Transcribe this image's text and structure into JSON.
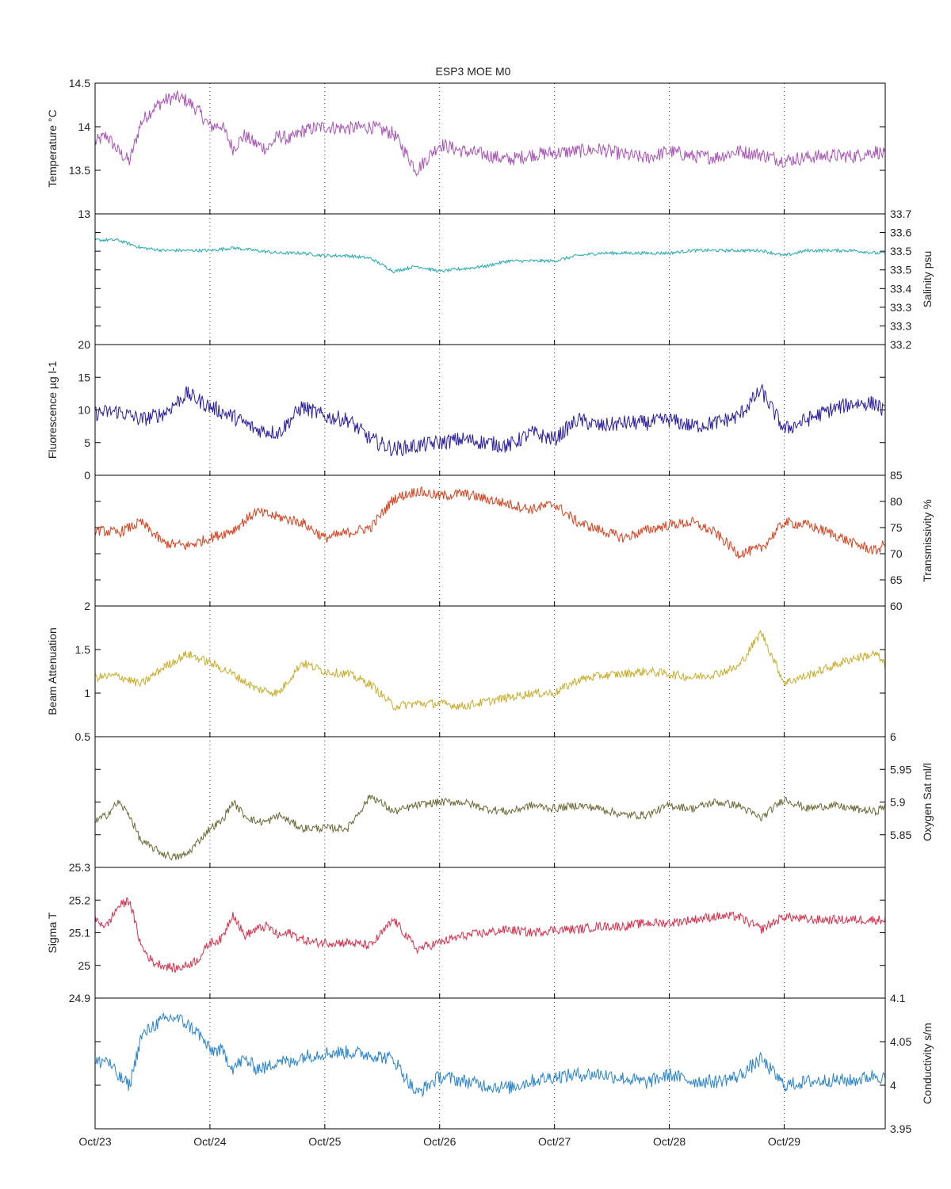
{
  "title": "ESP3 MOE   M0",
  "chart_data": {
    "type": "line",
    "title": "ESP3 MOE   M0",
    "x_ticks": [
      "Oct/23",
      "Oct/24",
      "Oct/25",
      "Oct/26",
      "Oct/27",
      "Oct/28",
      "Oct/29"
    ],
    "xlim": [
      0,
      6.88
    ],
    "grid": "vertical dotted at day boundaries",
    "panels": [
      {
        "name": "temperature",
        "ylabel": "Temperature °C",
        "axis_side": "left",
        "ylim": [
          13,
          14.5
        ],
        "yticks": [
          "13",
          "13.5",
          "14",
          "14.5"
        ],
        "color": "#a855b5",
        "series": {
          "x": [
            0,
            0.1,
            0.2,
            0.3,
            0.4,
            0.5,
            0.6,
            0.7,
            0.8,
            0.9,
            1.0,
            1.1,
            1.2,
            1.3,
            1.4,
            1.5,
            1.6,
            1.7,
            1.8,
            1.9,
            2.0,
            2.2,
            2.4,
            2.6,
            2.8,
            3.0,
            3.2,
            3.4,
            3.6,
            3.8,
            4.0,
            4.2,
            4.4,
            4.6,
            4.8,
            5.0,
            5.2,
            5.4,
            5.6,
            5.8,
            6.0,
            6.2,
            6.4,
            6.6,
            6.8,
            6.88
          ],
          "y": [
            13.82,
            13.9,
            13.72,
            13.6,
            14.05,
            14.2,
            14.3,
            14.34,
            14.3,
            14.18,
            14.0,
            14.02,
            13.75,
            13.9,
            13.8,
            13.75,
            13.9,
            13.85,
            13.95,
            13.98,
            14.0,
            13.98,
            14.0,
            13.92,
            13.5,
            13.8,
            13.72,
            13.68,
            13.62,
            13.68,
            13.7,
            13.72,
            13.74,
            13.68,
            13.64,
            13.72,
            13.66,
            13.65,
            13.72,
            13.68,
            13.61,
            13.65,
            13.67,
            13.66,
            13.72,
            13.67
          ]
        },
        "noise": 0.08
      },
      {
        "name": "salinity",
        "ylabel": "Salinity psu",
        "axis_side": "right",
        "ylim": [
          33.2,
          33.7
        ],
        "yticks": [
          "33.2",
          "33.3",
          "33.3",
          "33.4",
          "33.5",
          "33.5",
          "33.6",
          "33.7"
        ],
        "color": "#22a8b0",
        "series": {
          "x": [
            0,
            0.2,
            0.4,
            0.6,
            0.8,
            1.0,
            1.2,
            1.4,
            1.6,
            1.8,
            2.0,
            2.2,
            2.4,
            2.6,
            2.8,
            3.0,
            3.2,
            3.4,
            3.6,
            3.8,
            4.0,
            4.2,
            4.4,
            4.6,
            4.8,
            5.0,
            5.2,
            5.4,
            5.6,
            5.8,
            6.0,
            6.2,
            6.4,
            6.6,
            6.8,
            6.88
          ],
          "y": [
            33.6,
            33.6,
            33.57,
            33.56,
            33.56,
            33.56,
            33.57,
            33.56,
            33.55,
            33.55,
            33.54,
            33.54,
            33.53,
            33.48,
            33.5,
            33.48,
            33.49,
            33.5,
            33.52,
            33.52,
            33.52,
            33.54,
            33.55,
            33.55,
            33.55,
            33.55,
            33.56,
            33.56,
            33.56,
            33.56,
            33.54,
            33.56,
            33.56,
            33.56,
            33.55,
            33.55
          ]
        },
        "noise": 0.006
      },
      {
        "name": "fluorescence",
        "ylabel": "Fluorescence µg l-1",
        "axis_side": "left",
        "ylim": [
          0,
          20
        ],
        "yticks": [
          "0",
          "5",
          "10",
          "15",
          "20"
        ],
        "color": "#2b1fa0",
        "series": {
          "x": [
            0,
            0.2,
            0.4,
            0.6,
            0.8,
            1.0,
            1.2,
            1.4,
            1.6,
            1.8,
            2.0,
            2.2,
            2.4,
            2.6,
            2.8,
            3.0,
            3.2,
            3.4,
            3.6,
            3.8,
            4.0,
            4.2,
            4.4,
            4.6,
            4.8,
            5.0,
            5.2,
            5.4,
            5.6,
            5.8,
            6.0,
            6.2,
            6.4,
            6.6,
            6.8,
            6.88
          ],
          "y": [
            9.5,
            9.8,
            8.5,
            9.5,
            12.5,
            10.5,
            9,
            7,
            6.5,
            10.5,
            9,
            8.5,
            5.5,
            4,
            4.5,
            5,
            5.5,
            5,
            4.5,
            6.5,
            5.5,
            8.5,
            7.5,
            8,
            8,
            8.5,
            7.5,
            8,
            9,
            13,
            7,
            8.5,
            10,
            11,
            11,
            9.5
          ]
        },
        "noise": 1.2
      },
      {
        "name": "transmissivity",
        "ylabel": "Transmissivity %",
        "axis_side": "right",
        "ylim": [
          60,
          85
        ],
        "yticks": [
          "60",
          "65",
          "70",
          "75",
          "80",
          "85"
        ],
        "color": "#d9411e",
        "series": {
          "x": [
            0,
            0.2,
            0.4,
            0.6,
            0.8,
            1.0,
            1.2,
            1.4,
            1.6,
            1.8,
            2.0,
            2.2,
            2.4,
            2.6,
            2.8,
            3.0,
            3.2,
            3.4,
            3.6,
            3.8,
            4.0,
            4.2,
            4.4,
            4.6,
            4.8,
            5.0,
            5.2,
            5.4,
            5.6,
            5.8,
            6.0,
            6.2,
            6.4,
            6.6,
            6.8,
            6.88
          ],
          "y": [
            74.5,
            74,
            76,
            72,
            71.5,
            73,
            74.5,
            78,
            77,
            76,
            73,
            74,
            75,
            80.5,
            82,
            81,
            81.5,
            80.5,
            79.5,
            78.5,
            79.5,
            76,
            74.5,
            73,
            74.5,
            75.5,
            76,
            74,
            70,
            71,
            76,
            75.5,
            74,
            72,
            70.5,
            72
          ]
        },
        "noise": 1.0
      },
      {
        "name": "beam-attenuation",
        "ylabel": "Beam Attenuation",
        "axis_side": "left",
        "ylim": [
          0.5,
          2
        ],
        "yticks": [
          "0.5",
          "1",
          "1.5",
          "2"
        ],
        "color": "#c9ad2e",
        "series": {
          "x": [
            0,
            0.2,
            0.4,
            0.6,
            0.8,
            1.0,
            1.2,
            1.4,
            1.6,
            1.8,
            2.0,
            2.2,
            2.4,
            2.6,
            2.8,
            3.0,
            3.2,
            3.4,
            3.6,
            3.8,
            4.0,
            4.2,
            4.4,
            4.6,
            4.8,
            5.0,
            5.2,
            5.4,
            5.6,
            5.8,
            6.0,
            6.2,
            6.4,
            6.6,
            6.8,
            6.88
          ],
          "y": [
            1.18,
            1.2,
            1.1,
            1.3,
            1.45,
            1.35,
            1.22,
            1.05,
            1.0,
            1.35,
            1.25,
            1.22,
            1.1,
            0.85,
            0.88,
            0.88,
            0.85,
            0.9,
            0.95,
            1.0,
            1.0,
            1.15,
            1.2,
            1.22,
            1.25,
            1.22,
            1.18,
            1.22,
            1.3,
            1.7,
            1.12,
            1.2,
            1.3,
            1.4,
            1.45,
            1.32
          ]
        },
        "noise": 0.05
      },
      {
        "name": "oxygen-sat",
        "ylabel": "Oxygen Sat ml/l",
        "axis_side": "right",
        "ylim": [
          5.8,
          6
        ],
        "yticks": [
          "5.85",
          "5.9",
          "5.95",
          "6"
        ],
        "color": "#6e6b3a",
        "series": {
          "x": [
            0,
            0.1,
            0.2,
            0.3,
            0.4,
            0.5,
            0.6,
            0.7,
            0.8,
            0.9,
            1.0,
            1.1,
            1.2,
            1.3,
            1.4,
            1.5,
            1.6,
            1.7,
            1.8,
            1.9,
            2.0,
            2.2,
            2.4,
            2.6,
            2.8,
            3.0,
            3.2,
            3.4,
            3.6,
            3.8,
            4.0,
            4.2,
            4.4,
            4.6,
            4.8,
            5.0,
            5.2,
            5.4,
            5.6,
            5.8,
            6.0,
            6.2,
            6.4,
            6.6,
            6.8,
            6.88
          ],
          "y": [
            5.87,
            5.88,
            5.9,
            5.88,
            5.84,
            5.83,
            5.82,
            5.815,
            5.82,
            5.84,
            5.86,
            5.87,
            5.9,
            5.88,
            5.87,
            5.87,
            5.88,
            5.87,
            5.86,
            5.86,
            5.86,
            5.86,
            5.91,
            5.885,
            5.895,
            5.9,
            5.9,
            5.89,
            5.885,
            5.895,
            5.89,
            5.895,
            5.89,
            5.88,
            5.88,
            5.895,
            5.89,
            5.9,
            5.895,
            5.875,
            5.905,
            5.89,
            5.895,
            5.89,
            5.885,
            5.895
          ]
        },
        "noise": 0.006
      },
      {
        "name": "sigma-t",
        "ylabel": "Sigma T",
        "axis_side": "left",
        "ylim": [
          24.9,
          25.3
        ],
        "yticks": [
          "24.9",
          "25",
          "25.1",
          "25.2",
          "25.3"
        ],
        "color": "#d92f4c",
        "series": {
          "x": [
            0,
            0.1,
            0.2,
            0.3,
            0.4,
            0.5,
            0.6,
            0.7,
            0.8,
            0.9,
            1.0,
            1.1,
            1.2,
            1.3,
            1.4,
            1.5,
            1.6,
            1.7,
            1.8,
            1.9,
            2.0,
            2.2,
            2.4,
            2.6,
            2.8,
            3.0,
            3.2,
            3.4,
            3.6,
            3.8,
            4.0,
            4.2,
            4.4,
            4.6,
            4.8,
            5.0,
            5.2,
            5.4,
            5.6,
            5.8,
            6.0,
            6.2,
            6.4,
            6.6,
            6.8,
            6.88
          ],
          "y": [
            25.14,
            25.12,
            25.18,
            25.2,
            25.06,
            25.01,
            25.0,
            24.99,
            25.0,
            25.02,
            25.07,
            25.08,
            25.16,
            25.09,
            25.11,
            25.12,
            25.09,
            25.1,
            25.08,
            25.07,
            25.07,
            25.07,
            25.06,
            25.14,
            25.05,
            25.07,
            25.09,
            25.1,
            25.11,
            25.1,
            25.11,
            25.11,
            25.12,
            25.12,
            25.13,
            25.13,
            25.14,
            25.15,
            25.15,
            25.11,
            25.15,
            25.14,
            25.14,
            25.14,
            25.14,
            25.14
          ]
        },
        "noise": 0.014
      },
      {
        "name": "conductivity",
        "ylabel": "Conductivity s/m",
        "axis_side": "right",
        "ylim": [
          3.95,
          4.1
        ],
        "yticks": [
          "3.95",
          "4",
          "4.05",
          "4.1"
        ],
        "color": "#2a84cc",
        "series": {
          "x": [
            0,
            0.1,
            0.2,
            0.3,
            0.4,
            0.5,
            0.6,
            0.7,
            0.8,
            0.9,
            1.0,
            1.1,
            1.2,
            1.3,
            1.4,
            1.5,
            1.6,
            1.7,
            1.8,
            1.9,
            2.0,
            2.2,
            2.4,
            2.6,
            2.8,
            3.0,
            3.2,
            3.4,
            3.6,
            3.8,
            4.0,
            4.2,
            4.4,
            4.6,
            4.8,
            5.0,
            5.2,
            5.4,
            5.6,
            5.8,
            6.0,
            6.2,
            6.4,
            6.6,
            6.8,
            6.88
          ],
          "y": [
            4.025,
            4.03,
            4.01,
            4.0,
            4.055,
            4.068,
            4.075,
            4.078,
            4.07,
            4.06,
            4.04,
            4.04,
            4.02,
            4.03,
            4.02,
            4.02,
            4.03,
            4.025,
            4.033,
            4.035,
            4.037,
            4.038,
            4.035,
            4.03,
            3.99,
            4.01,
            4.005,
            4.0,
            3.997,
            4.005,
            4.01,
            4.012,
            4.013,
            4.008,
            4.003,
            4.012,
            4.005,
            4.004,
            4.01,
            4.03,
            4.0,
            4.004,
            4.006,
            4.005,
            4.012,
            4.007
          ]
        },
        "noise": 0.008
      }
    ]
  }
}
